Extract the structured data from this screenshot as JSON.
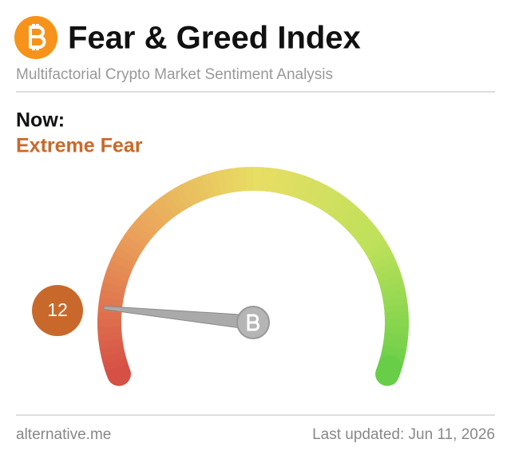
{
  "chart_data": {
    "type": "gauge",
    "title": "Fear & Greed Index",
    "subtitle": "Multifactorial Crypto Market Sentiment Analysis",
    "now_label": "Now:",
    "classification": "Extreme Fear",
    "value": 12,
    "ylim": [
      0,
      100
    ],
    "color": "#c8692b",
    "source": "alternative.me",
    "updated": "Last updated: Jun 11, 2026"
  }
}
